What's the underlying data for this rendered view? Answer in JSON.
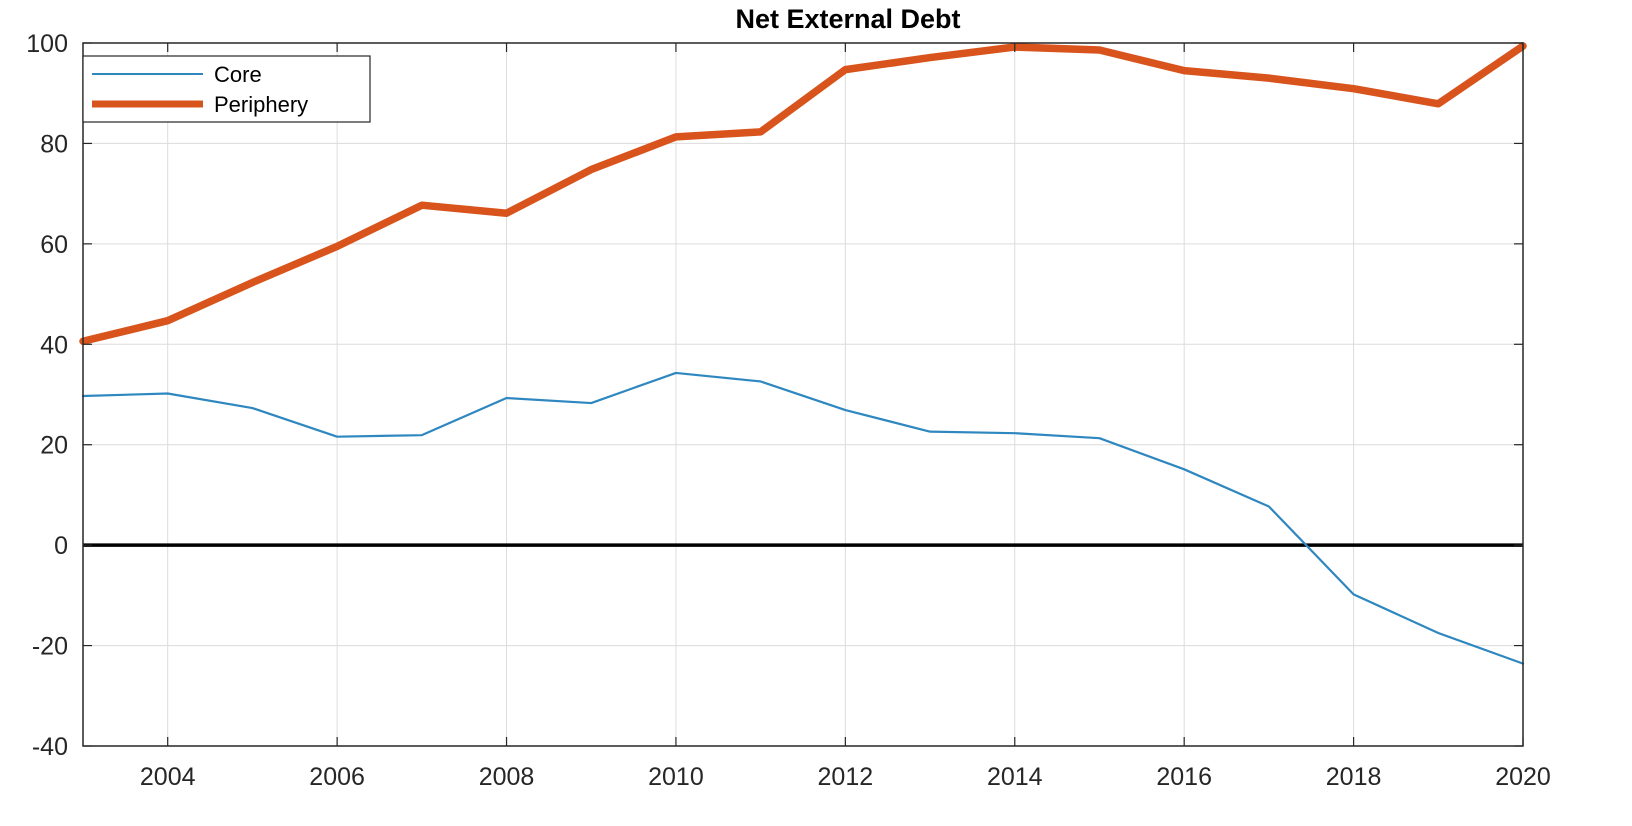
{
  "chart_data": {
    "type": "line",
    "title": "Net External Debt",
    "xlabel": "",
    "ylabel": "",
    "xlim": [
      2003,
      2020
    ],
    "ylim": [
      -40,
      100
    ],
    "x_ticks": [
      2004,
      2006,
      2008,
      2010,
      2012,
      2014,
      2016,
      2018,
      2020
    ],
    "y_ticks": [
      -40,
      -20,
      0,
      20,
      40,
      60,
      80,
      100
    ],
    "grid": true,
    "legend_position": "top-left",
    "reference_line_y": 0,
    "x": [
      2003,
      2004,
      2005,
      2006,
      2007,
      2008,
      2009,
      2010,
      2011,
      2012,
      2013,
      2014,
      2015,
      2016,
      2017,
      2018,
      2019,
      2020
    ],
    "series": [
      {
        "name": "Core",
        "color": "#2f87c0",
        "values": [
          29.7,
          30.2,
          27.3,
          21.6,
          21.9,
          29.3,
          28.3,
          34.3,
          32.6,
          26.9,
          22.6,
          22.3,
          21.3,
          15.1,
          7.7,
          -9.8,
          -17.5,
          -23.6
        ]
      },
      {
        "name": "Periphery",
        "color": "#d8541c",
        "values": [
          40.6,
          44.7,
          52.3,
          59.5,
          67.7,
          66.1,
          74.8,
          81.3,
          82.3,
          94.7,
          97.1,
          99.2,
          98.6,
          94.5,
          93.0,
          90.9,
          87.9,
          99.4
        ]
      }
    ]
  }
}
